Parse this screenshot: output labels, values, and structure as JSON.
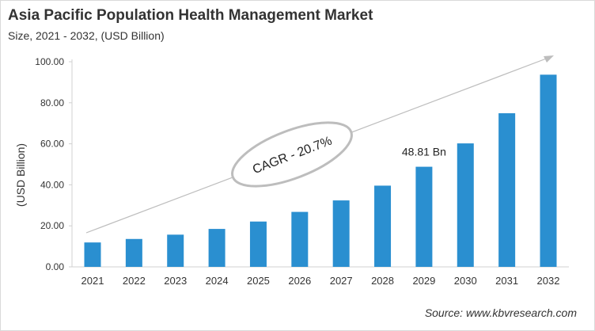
{
  "chart_data": {
    "type": "bar",
    "title": "Asia Pacific Population Health Management Market",
    "subtitle": "Size, 2021 - 2032, (USD Billion)",
    "xlabel": "",
    "ylabel": "(USD Billion)",
    "ylim": [
      0,
      100
    ],
    "yticks": [
      "0.00",
      "20.00",
      "40.00",
      "60.00",
      "80.00",
      "100.00"
    ],
    "categories": [
      "2021",
      "2022",
      "2023",
      "2024",
      "2025",
      "2026",
      "2027",
      "2028",
      "2029",
      "2030",
      "2031",
      "2032"
    ],
    "values": [
      11.9,
      13.6,
      15.7,
      18.5,
      22.1,
      26.8,
      32.4,
      39.6,
      48.81,
      60.2,
      74.9,
      93.7
    ],
    "annotations": {
      "cagr": "CAGR - 20.7%",
      "value_label": "48.81 Bn",
      "value_label_category": "2029"
    },
    "grid": false,
    "bar_color": "#2a8fd0",
    "source": "Source: www.kbvresearch.com"
  }
}
